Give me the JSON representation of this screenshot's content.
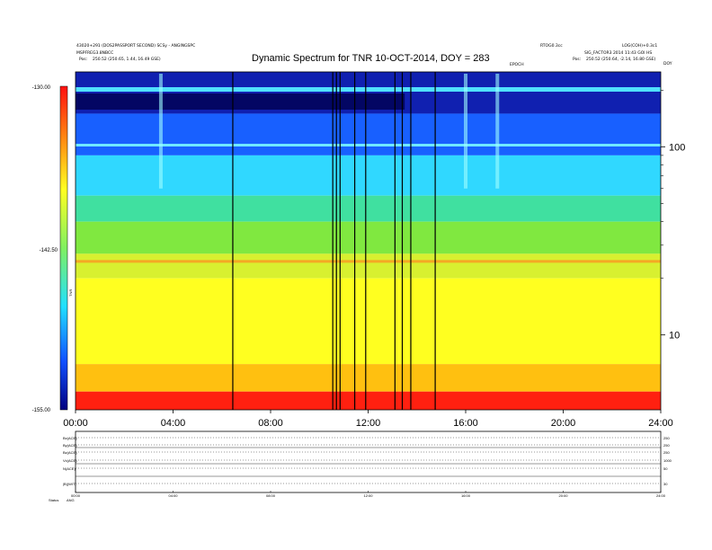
{
  "header": {
    "title": "Dynamic Spectrum for TNR 10-OCT-2014, DOY = 283",
    "left_line1": "43020+291 (DOS2PASSPORT SECOND) SCSy - ANGINGSPC",
    "left_line2": "MSPFREG3.8NBCC",
    "left_line3_label": "Pos:",
    "left_line3_value": "250.52 (250.65, 1.44, 16.49 GSE)",
    "right_top_left": "RTOG0.3cc",
    "right_top_right": "LOG(COH)+0.3c1",
    "right_line2": "SIG_FACTOR3 2014 11:43 GOI HS",
    "right_line3_label": "Pos:",
    "right_line3_value": "250.52 (250.64, -2.14, 16.80 GSE)",
    "mid_label": "EPOCH",
    "corner_label": "DOY"
  },
  "chart_data": {
    "type": "heatmap",
    "title": "Dynamic Spectrum for TNR 10-OCT-2014, DOY = 283",
    "x_ticks": [
      "00:00",
      "04:00",
      "08:00",
      "12:00",
      "16:00",
      "20:00",
      "24:00"
    ],
    "x_range_hours": [
      0,
      24
    ],
    "y_scale": "log",
    "y_range": [
      4,
      250
    ],
    "y_ticks_right": [
      "100",
      "10"
    ],
    "y_tick_values": [
      100,
      10
    ],
    "colorbar_ticks": [
      "-130.00",
      "-142.50",
      "-155.00"
    ],
    "colorbar_range": [
      -155.0,
      -130.0
    ],
    "colorbar_label": "TNR",
    "colors": {
      "low": "#1030c0",
      "mid_low": "#20d8ff",
      "mid": "#60e070",
      "mid_high": "#ffff20",
      "high": "#ff2010"
    },
    "data_gap_lines_hours": [
      6.45,
      10.55,
      10.7,
      10.85,
      11.45,
      11.9,
      13.1,
      13.4,
      13.75,
      14.75
    ],
    "bright_bursts_hours": [
      3.5,
      16.0,
      17.3
    ],
    "bands": [
      {
        "from_freq": 250,
        "to_freq": 150,
        "color": "#1020b0"
      },
      {
        "from_freq": 150,
        "to_freq": 90,
        "color": "#1860ff"
      },
      {
        "from_freq": 90,
        "to_freq": 55,
        "color": "#30d8ff"
      },
      {
        "from_freq": 55,
        "to_freq": 40,
        "color": "#40e0a0"
      },
      {
        "from_freq": 40,
        "to_freq": 27,
        "color": "#80e840"
      },
      {
        "from_freq": 27,
        "to_freq": 20,
        "color": "#d8f030"
      },
      {
        "from_freq": 20,
        "to_freq": 7,
        "color": "#ffff20"
      },
      {
        "from_freq": 7,
        "to_freq": 5,
        "color": "#ffc010"
      },
      {
        "from_freq": 5,
        "to_freq": 4,
        "color": "#ff2010"
      }
    ]
  },
  "lower_panel": {
    "row_labels": [
      "Bx(ACE)",
      "By(ACE)",
      "Bz(ACE)",
      "Vx(ACE)",
      "N(ACE)",
      "|B|(WIT)",
      "Status"
    ],
    "right_labels": [
      "250",
      "250",
      "250",
      "1000",
      "50",
      "30"
    ],
    "x_ticks": [
      "00:00",
      "04:00",
      "08:00",
      "12:00",
      "16:00",
      "20:00",
      "24:00"
    ],
    "status_label": "Status",
    "status_value": "ANG"
  }
}
